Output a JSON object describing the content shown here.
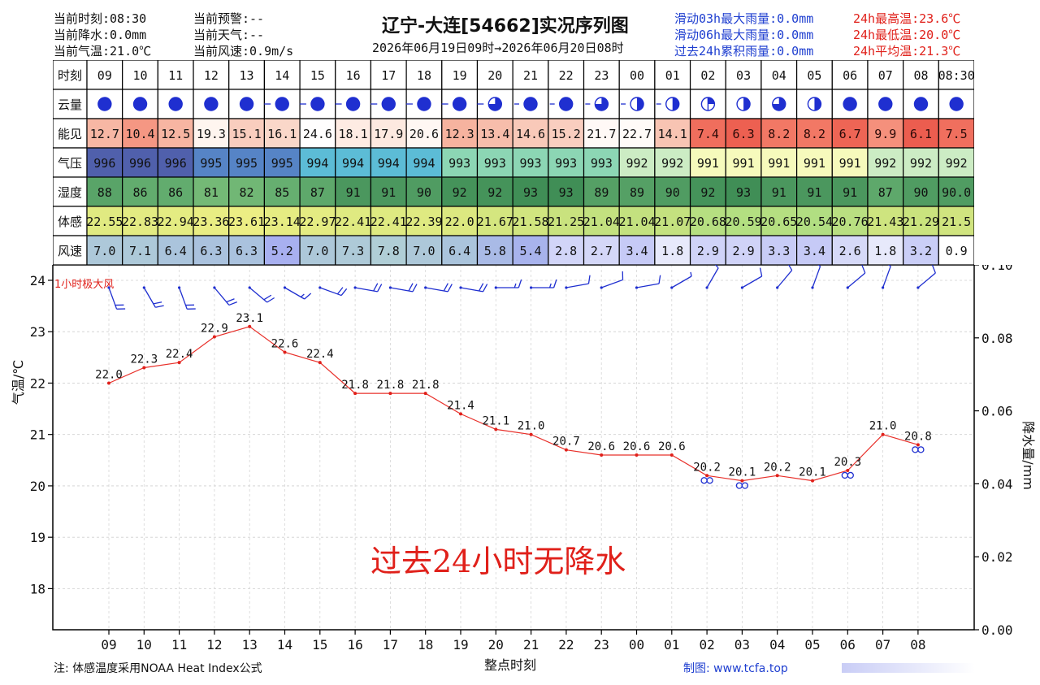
{
  "header": {
    "left": [
      {
        "label": "当前时刻:08:30"
      },
      {
        "label": "当前降水:0.0mm"
      },
      {
        "label": "当前气温:21.0℃"
      }
    ],
    "mid": [
      {
        "label": "当前预警:--"
      },
      {
        "label": "当前天气:--"
      },
      {
        "label": "当前风速:0.9m/s"
      }
    ],
    "rain": [
      {
        "label": "滑动03h最大雨量:0.0mm"
      },
      {
        "label": "滑动06h最大雨量:0.0mm"
      },
      {
        "label": "过去24h累积雨量:0.0mm"
      }
    ],
    "temps": [
      {
        "label": "24h最高温:23.6℃"
      },
      {
        "label": "24h最低温:20.0℃"
      },
      {
        "label": "24h平均温:21.3℃"
      }
    ],
    "title": "辽宁-大连[54662]实况序列图",
    "period": "2026年06月19日09时→2026年06月20日08时",
    "colors": {
      "blue": "#1f3fd0",
      "red": "#e0201a"
    }
  },
  "table": {
    "row_labels": [
      "时刻",
      "云量",
      "能见",
      "气压",
      "湿度",
      "体感",
      "风速"
    ],
    "hours": [
      "09",
      "10",
      "11",
      "12",
      "13",
      "14",
      "15",
      "16",
      "17",
      "18",
      "19",
      "20",
      "21",
      "22",
      "23",
      "00",
      "01",
      "02",
      "03",
      "04",
      "05",
      "06",
      "07",
      "08",
      "08:30"
    ],
    "cloud": [
      8,
      8,
      8,
      8,
      8,
      8,
      8,
      8,
      8,
      8,
      8,
      6,
      8,
      8,
      6,
      4,
      4,
      2,
      4,
      6,
      4,
      8,
      8,
      8,
      8
    ],
    "visibility": [
      "12.7",
      "10.4",
      "12.5",
      "19.3",
      "15.1",
      "16.1",
      "24.6",
      "18.1",
      "17.9",
      "20.6",
      "12.3",
      "13.4",
      "14.6",
      "15.2",
      "21.7",
      "22.7",
      "14.1",
      "7.4",
      "6.3",
      "8.2",
      "8.2",
      "6.7",
      "9.9",
      "6.1",
      "7.5"
    ],
    "pressure": [
      "996",
      "996",
      "996",
      "995",
      "995",
      "995",
      "994",
      "994",
      "994",
      "994",
      "993",
      "993",
      "993",
      "993",
      "993",
      "992",
      "992",
      "991",
      "991",
      "991",
      "991",
      "991",
      "992",
      "992",
      "992"
    ],
    "humidity": [
      "88",
      "86",
      "86",
      "81",
      "82",
      "85",
      "87",
      "91",
      "91",
      "90",
      "92",
      "92",
      "93",
      "93",
      "89",
      "89",
      "90",
      "92",
      "93",
      "91",
      "91",
      "91",
      "87",
      "90",
      "90.0"
    ],
    "feels": [
      "22.55",
      "22.83",
      "22.94",
      "23.36",
      "23.61",
      "23.14",
      "22.97",
      "22.41",
      "22.41",
      "22.39",
      "22.0",
      "21.67",
      "21.58",
      "21.25",
      "21.04",
      "21.04",
      "21.07",
      "20.68",
      "20.59",
      "20.65",
      "20.54",
      "20.76",
      "21.43",
      "21.29",
      "21.5"
    ],
    "wind": [
      "7.0",
      "7.1",
      "6.4",
      "6.3",
      "6.3",
      "5.2",
      "7.0",
      "7.3",
      "7.8",
      "7.0",
      "6.4",
      "5.8",
      "5.4",
      "2.8",
      "2.7",
      "3.4",
      "1.8",
      "2.9",
      "2.9",
      "3.3",
      "3.4",
      "2.6",
      "1.8",
      "3.2",
      "0.9"
    ]
  },
  "chart_data": {
    "type": "line",
    "x": [
      "09",
      "10",
      "11",
      "12",
      "13",
      "14",
      "15",
      "16",
      "17",
      "18",
      "19",
      "20",
      "21",
      "22",
      "23",
      "00",
      "01",
      "02",
      "03",
      "04",
      "05",
      "06",
      "07",
      "08"
    ],
    "series": [
      {
        "values": [
          22.0,
          22.3,
          22.4,
          22.9,
          23.1,
          22.6,
          22.4,
          21.8,
          21.8,
          21.8,
          21.4,
          21.1,
          21.0,
          20.7,
          20.6,
          20.6,
          20.6,
          20.2,
          20.1,
          20.2,
          20.1,
          20.3,
          21.0,
          20.8
        ],
        "labels": [
          "22.0",
          "22.3",
          "22.4",
          "22.9",
          "23.1",
          "22.6",
          "22.4",
          "21.8",
          "21.8",
          "21.8",
          "21.4",
          "21.1",
          "21.0",
          "20.7",
          "20.6",
          "20.6",
          "20.6",
          "20.2",
          "20.1",
          "20.2",
          "20.1",
          "20.3",
          "21.0",
          "20.8"
        ]
      }
    ],
    "fog_marks": [
      "02",
      "03",
      "06",
      "08"
    ],
    "wind_dir": [
      340,
      330,
      340,
      320,
      310,
      300,
      290,
      280,
      280,
      280,
      280,
      270,
      270,
      260,
      250,
      260,
      240,
      210,
      240,
      220,
      200,
      230,
      200,
      230
    ],
    "xlabel": "整点时刻",
    "ylabel": "气温/℃",
    "ylabel_right": "降水量/mm",
    "ylim": [
      17.2,
      24.3
    ],
    "yticks": [
      "18",
      "19",
      "20",
      "21",
      "22",
      "23",
      "24"
    ],
    "ylim_right": [
      0,
      0.1
    ],
    "yticks_right": [
      "0.00",
      "0.02",
      "0.04",
      "0.06",
      "0.08",
      "0.10"
    ],
    "gust_label": "1小时极大风",
    "annotation": "过去24小时无降水",
    "grid": true
  },
  "footer": {
    "note": "注: 体感温度采用NOAA Heat Index公式",
    "credit": "制图: www.tcfa.top"
  }
}
